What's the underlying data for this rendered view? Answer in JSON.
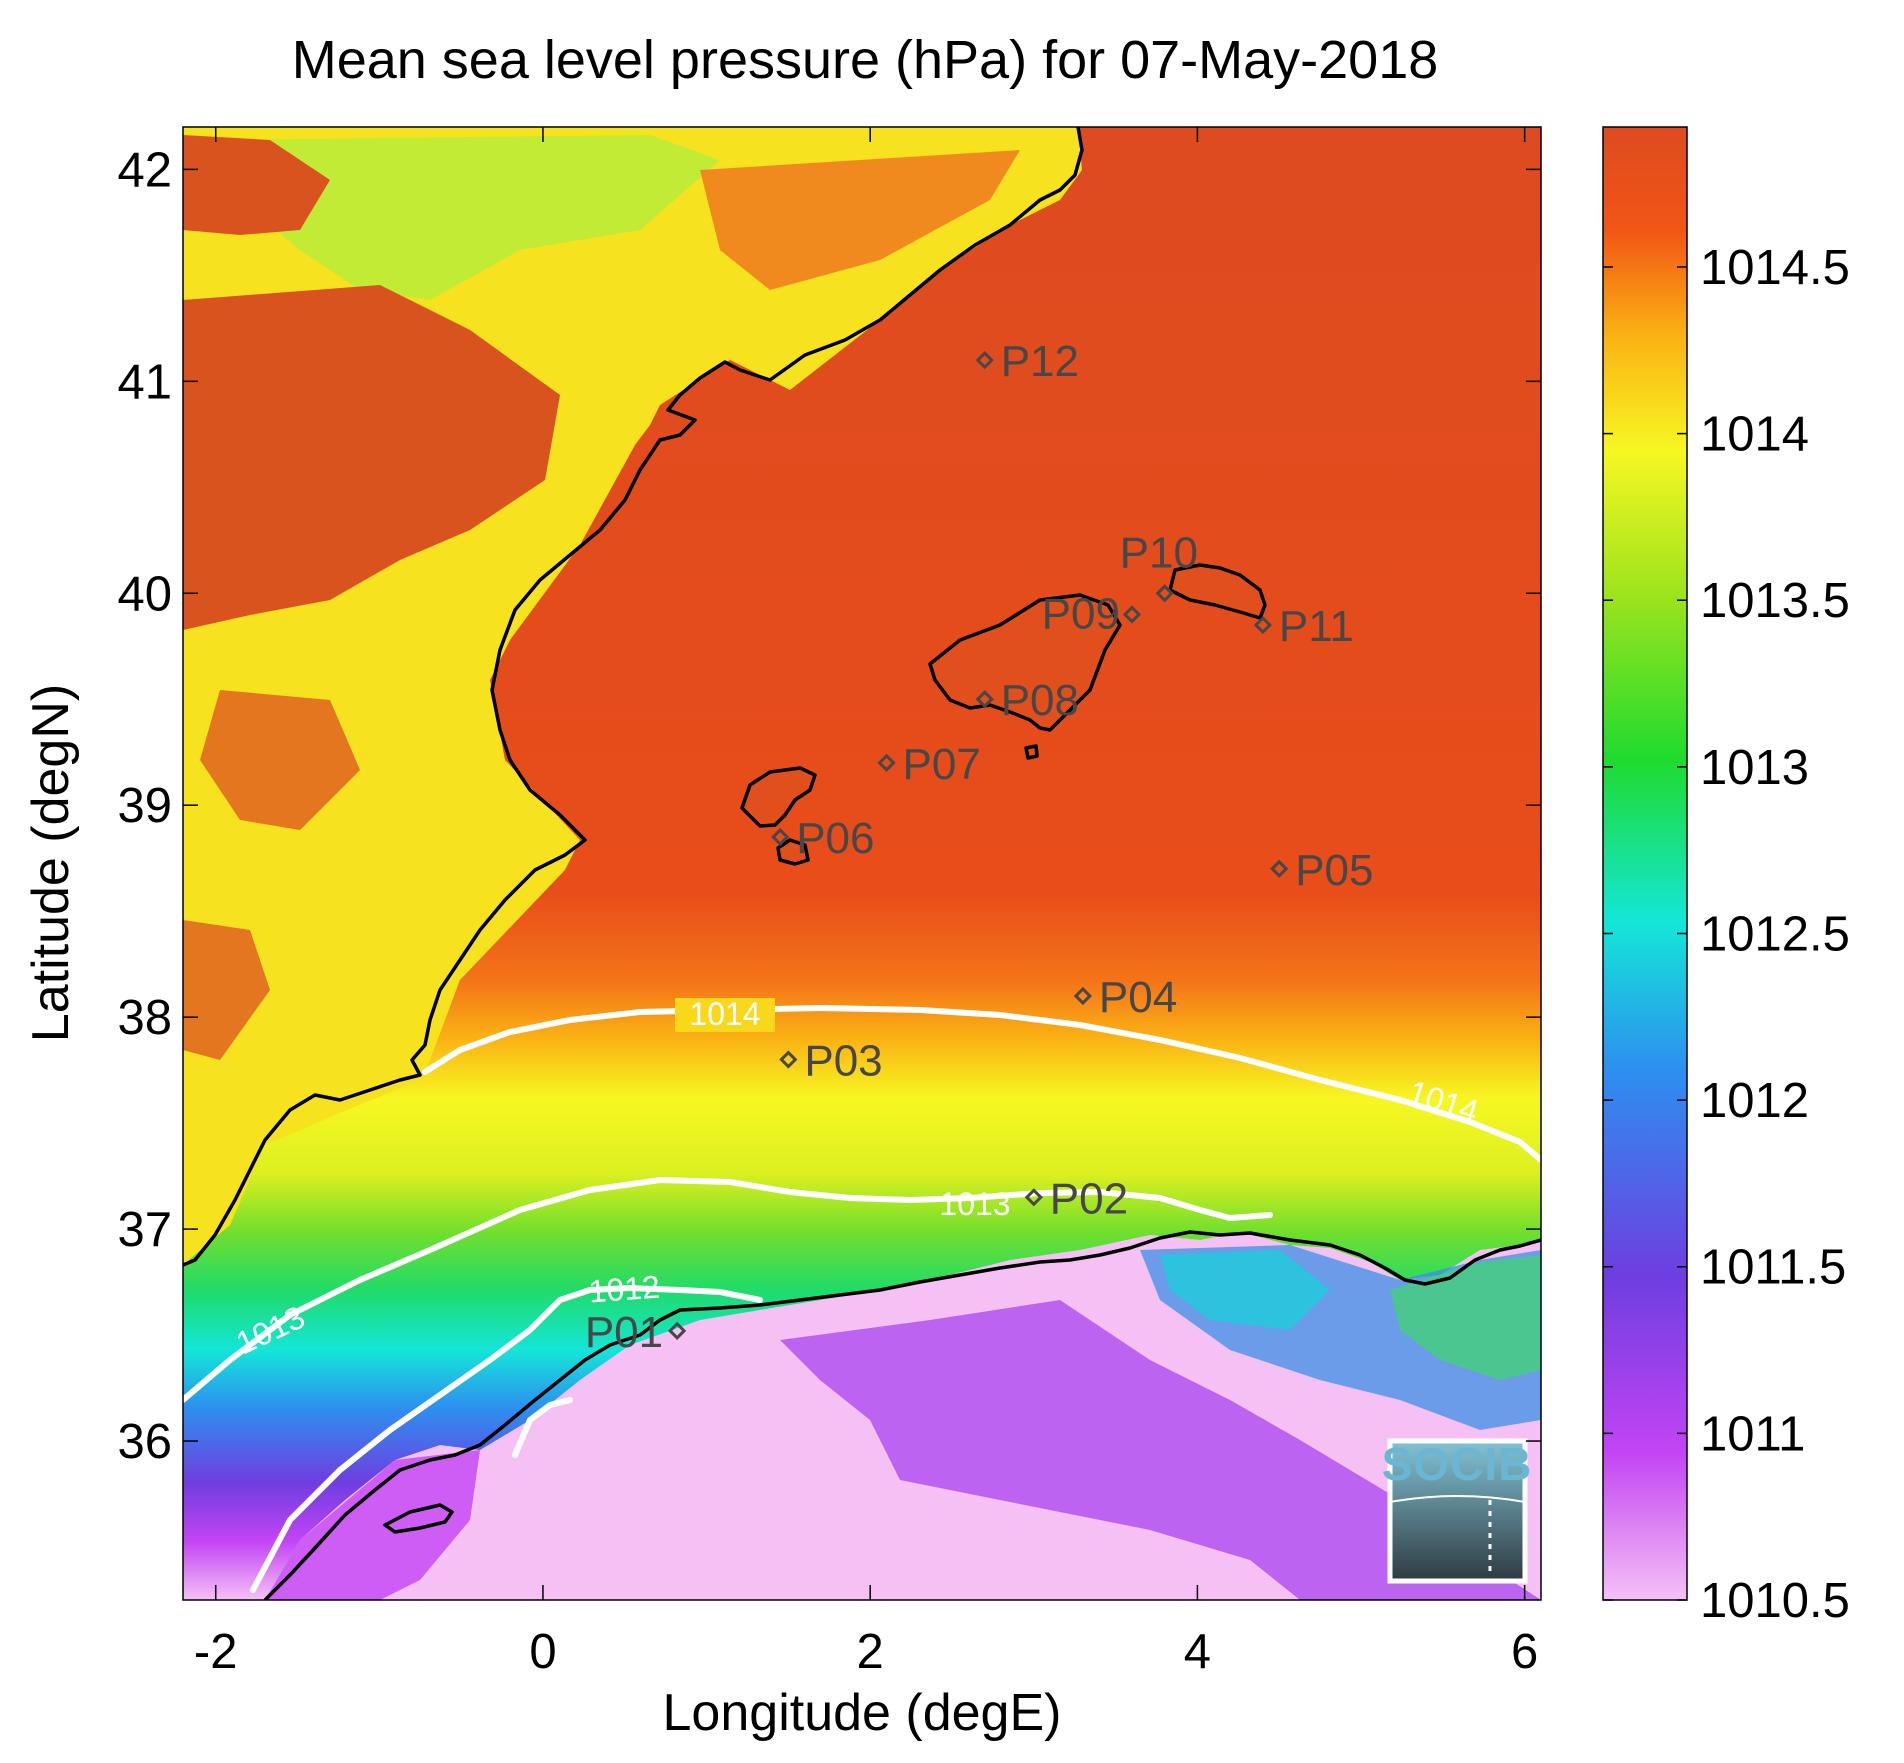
{
  "title": "Mean sea level pressure (hPa) for 07-May-2018",
  "x_axis": {
    "label": "Longitude (degE)",
    "range": [
      -2.2,
      6.1
    ],
    "ticks": [
      {
        "value": -2,
        "label": "-2"
      },
      {
        "value": 0,
        "label": "0"
      },
      {
        "value": 2,
        "label": "2"
      },
      {
        "value": 4,
        "label": "4"
      },
      {
        "value": 6,
        "label": "6"
      }
    ]
  },
  "y_axis": {
    "label": "Latitude (degN)",
    "range": [
      35.25,
      42.2
    ],
    "ticks": [
      {
        "value": 36,
        "label": "36"
      },
      {
        "value": 37,
        "label": "37"
      },
      {
        "value": 38,
        "label": "38"
      },
      {
        "value": 39,
        "label": "39"
      },
      {
        "value": 40,
        "label": "40"
      },
      {
        "value": 41,
        "label": "41"
      },
      {
        "value": 42,
        "label": "42"
      }
    ]
  },
  "colorbar": {
    "range": [
      1010.5,
      1014.92
    ],
    "ticks": [
      {
        "value": 1010.5,
        "label": "1010.5"
      },
      {
        "value": 1011,
        "label": "1011"
      },
      {
        "value": 1011.5,
        "label": "1011.5"
      },
      {
        "value": 1012,
        "label": "1012"
      },
      {
        "value": 1012.5,
        "label": "1012.5"
      },
      {
        "value": 1013,
        "label": "1013"
      },
      {
        "value": 1013.5,
        "label": "1013.5"
      },
      {
        "value": 1014,
        "label": "1014"
      },
      {
        "value": 1014.5,
        "label": "1014.5"
      }
    ],
    "colors": [
      "#f5c1f5",
      "#c344f4",
      "#6e3ee0",
      "#2d8ff0",
      "#14e6d8",
      "#1fdb2f",
      "#9be31d",
      "#f7f722",
      "#fbb014",
      "#f25515",
      "#dd4b20"
    ]
  },
  "stations": [
    {
      "id": "P01",
      "label": "P01",
      "lon": 0.82,
      "lat": 36.52
    },
    {
      "id": "P02",
      "label": "P02",
      "lon": 3.0,
      "lat": 37.15
    },
    {
      "id": "P03",
      "label": "P03",
      "lon": 1.5,
      "lat": 37.8
    },
    {
      "id": "P04",
      "label": "P04",
      "lon": 3.3,
      "lat": 38.1
    },
    {
      "id": "P05",
      "label": "P05",
      "lon": 4.5,
      "lat": 38.7
    },
    {
      "id": "P06",
      "label": "P06",
      "lon": 1.45,
      "lat": 38.85
    },
    {
      "id": "P07",
      "label": "P07",
      "lon": 2.1,
      "lat": 39.2
    },
    {
      "id": "P08",
      "label": "P08",
      "lon": 2.7,
      "lat": 39.5
    },
    {
      "id": "P09",
      "label": "P09",
      "lon": 3.6,
      "lat": 39.9
    },
    {
      "id": "P10",
      "label": "P10",
      "lon": 3.8,
      "lat": 40.0
    },
    {
      "id": "P11",
      "label": "P11",
      "lon": 4.4,
      "lat": 39.85
    },
    {
      "id": "P12",
      "label": "P12",
      "lon": 2.7,
      "lat": 41.1
    }
  ],
  "contours": [
    {
      "level": 1014,
      "label": "1014"
    },
    {
      "level": 1013,
      "label": "1013"
    },
    {
      "level": 1012,
      "label": "1012"
    }
  ],
  "logo": {
    "text": "SOCIB"
  }
}
